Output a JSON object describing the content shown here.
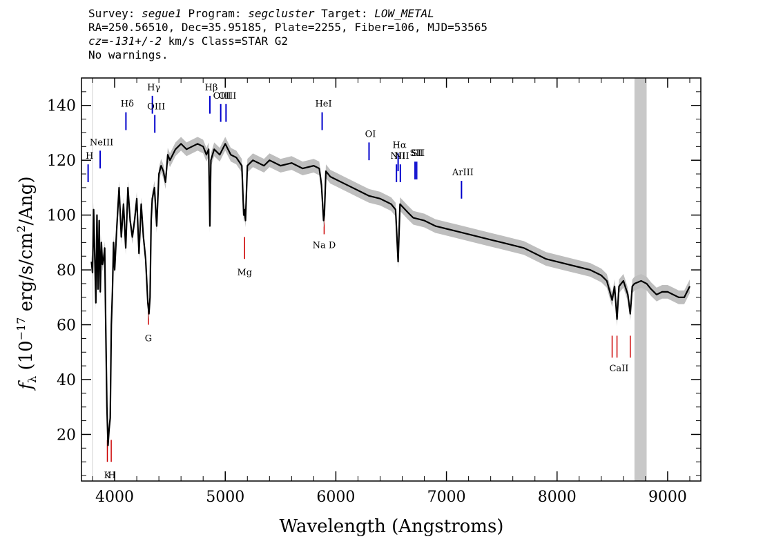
{
  "header": {
    "line1": {
      "survey_label": "Survey: ",
      "survey": "segue1",
      "program_label": " Program: ",
      "program": "segcluster",
      "target_label": " Target: ",
      "target": "LOW_METAL"
    },
    "line2": "RA=250.56510, Dec=35.95185, Plate=2255, Fiber=106, MJD=53565",
    "line3": {
      "cz": "cz=-131+/-2",
      "rest": " km/s Class=STAR G2"
    },
    "line4": "No warnings."
  },
  "chart_data": {
    "type": "line",
    "xlabel": "Wavelength (Angstroms)",
    "ylabel": "f_λ (10^-17 erg/s/cm^2/Ang)",
    "xlim": [
      3700,
      9300
    ],
    "ylim": [
      3,
      150
    ],
    "x_ticks": [
      4000,
      5000,
      6000,
      7000,
      8000,
      9000
    ],
    "y_ticks": [
      20,
      40,
      60,
      80,
      100,
      120,
      140
    ],
    "masked_region": [
      8700,
      8810
    ],
    "lower_cut": 3800,
    "series": [
      {
        "x": [
          3790,
          3800,
          3810,
          3820,
          3830,
          3840,
          3850,
          3860,
          3870,
          3880,
          3890,
          3900,
          3910,
          3920,
          3930,
          3940,
          3950,
          3960,
          3970,
          3980,
          3990,
          4000,
          4020,
          4040,
          4060,
          4080,
          4100,
          4120,
          4140,
          4160,
          4180,
          4200,
          4220,
          4240,
          4260,
          4280,
          4300,
          4310,
          4320,
          4330,
          4340,
          4360,
          4380,
          4400,
          4420,
          4440,
          4460,
          4480,
          4500,
          4550,
          4600,
          4650,
          4700,
          4750,
          4800,
          4830,
          4850,
          4861,
          4870,
          4900,
          4950,
          5000,
          5050,
          5100,
          5150,
          5167,
          5173,
          5183,
          5200,
          5250,
          5300,
          5350,
          5400,
          5450,
          5500,
          5600,
          5700,
          5800,
          5850,
          5870,
          5889,
          5896,
          5910,
          5950,
          6000,
          6100,
          6200,
          6300,
          6400,
          6450,
          6500,
          6540,
          6563,
          6580,
          6650,
          6700,
          6800,
          6900,
          7000,
          7100,
          7200,
          7300,
          7400,
          7500,
          7600,
          7700,
          7800,
          7900,
          8000,
          8100,
          8200,
          8300,
          8400,
          8450,
          8498,
          8520,
          8542,
          8560,
          8600,
          8640,
          8662,
          8680,
          8700,
          8760,
          8810,
          8850,
          8900,
          8950,
          9000,
          9050,
          9100,
          9150,
          9200
        ],
        "values": [
          83,
          79,
          102,
          85,
          68,
          100,
          73,
          98,
          72,
          90,
          82,
          84,
          88,
          58,
          30,
          16,
          22,
          26,
          60,
          72,
          90,
          80,
          96,
          110,
          92,
          104,
          88,
          110,
          98,
          92,
          98,
          106,
          86,
          104,
          92,
          84,
          68,
          64,
          70,
          98,
          106,
          110,
          96,
          115,
          118,
          116,
          112,
          122,
          120,
          124,
          126,
          124,
          125,
          126,
          125,
          122,
          124,
          96,
          120,
          124,
          122,
          126,
          122,
          121,
          118,
          100,
          102,
          98,
          118,
          120,
          119,
          118,
          120,
          119,
          118,
          119,
          117,
          118,
          117,
          111,
          98,
          100,
          116,
          114,
          113,
          111,
          109,
          107,
          106,
          105,
          104,
          102,
          83,
          104,
          101,
          99,
          98,
          96,
          95,
          94,
          93,
          92,
          91,
          90,
          89,
          88,
          86,
          84,
          83,
          82,
          81,
          80,
          78,
          76,
          69,
          74,
          62,
          74,
          76,
          71,
          64,
          74,
          75,
          76,
          75,
          73,
          71,
          72,
          72,
          71,
          70,
          70,
          74
        ]
      }
    ],
    "lines_blue": [
      {
        "label": "H",
        "x": 3760,
        "label_y": 120
      },
      {
        "label": "NeIII",
        "x": 3869,
        "label_y": 125
      },
      {
        "label": "Hδ",
        "x": 4102,
        "label_y": 139
      },
      {
        "label": "Hγ",
        "x": 4341,
        "label_y": 145
      },
      {
        "label": "OIII",
        "x": 4363,
        "label_y": 138
      },
      {
        "label": "Hβ",
        "x": 4861,
        "label_y": 145
      },
      {
        "label": "OIII",
        "x": 4959,
        "label_y": 142
      },
      {
        "label": "OIII",
        "x": 5007,
        "label_y": 142
      },
      {
        "label": "HeI",
        "x": 5876,
        "label_y": 139
      },
      {
        "label": "OI",
        "x": 6300,
        "label_y": 128
      },
      {
        "label": "NII",
        "x": 6548,
        "label_y": 120
      },
      {
        "label": "Hα",
        "x": 6563,
        "label_y": 124
      },
      {
        "label": "NII",
        "x": 6583,
        "label_y": 120
      },
      {
        "label": "SII",
        "x": 6716,
        "label_y": 121
      },
      {
        "label": "SII",
        "x": 6731,
        "label_y": 121
      },
      {
        "label": "ArIII",
        "x": 7136,
        "label_y": 114
      }
    ],
    "lines_red": [
      {
        "label": "K",
        "x": 3934
      },
      {
        "label": "H",
        "x": 3969
      },
      {
        "label": "G",
        "x": 4305
      },
      {
        "label": "Mg",
        "x": 5175
      },
      {
        "label": "Na D",
        "x": 5894
      },
      {
        "label": "CaII",
        "x": 8498
      },
      {
        "label": "CaII",
        "x": 8542
      },
      {
        "label": "CaII",
        "x": 8662
      }
    ]
  },
  "colors": {
    "spectrum": "#000000",
    "error_band": "#bebebe",
    "emission_line": "#0000cc",
    "absorption_line": "#cc0000",
    "mask": "#c8c8c8"
  }
}
